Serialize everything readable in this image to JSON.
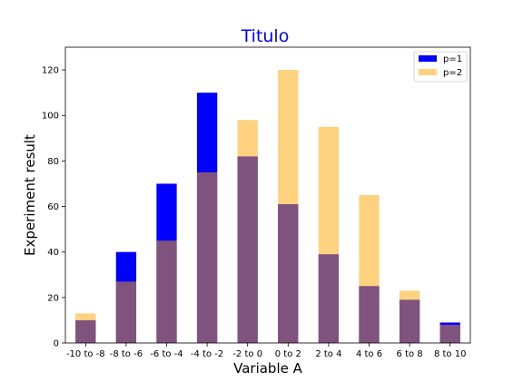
{
  "chart_data": {
    "type": "bar",
    "title": "Titulo",
    "title_color": "#0000ff",
    "xlabel": "Variable A",
    "ylabel": "Experiment result",
    "ylim": [
      0,
      130
    ],
    "yticks": [
      0,
      20,
      40,
      60,
      80,
      100,
      120
    ],
    "grid": false,
    "legend_position": "top-right",
    "categories": [
      "-10 to -8",
      "-8 to -6",
      "-6 to -4",
      "-4 to -2",
      "-2 to 0",
      "0 to 2",
      "2 to 4",
      "4 to 6",
      "6 to 8",
      "8 to 10"
    ],
    "series": [
      {
        "name": "p=1",
        "color": "#0000ff",
        "opacity": 1.0,
        "values": [
          10,
          40,
          70,
          110,
          82,
          61,
          39,
          25,
          19,
          9
        ]
      },
      {
        "name": "p=2",
        "color": "#ffa500",
        "opacity": 0.5,
        "values": [
          13,
          27,
          45,
          75,
          98,
          120,
          95,
          65,
          23,
          8
        ]
      }
    ]
  }
}
